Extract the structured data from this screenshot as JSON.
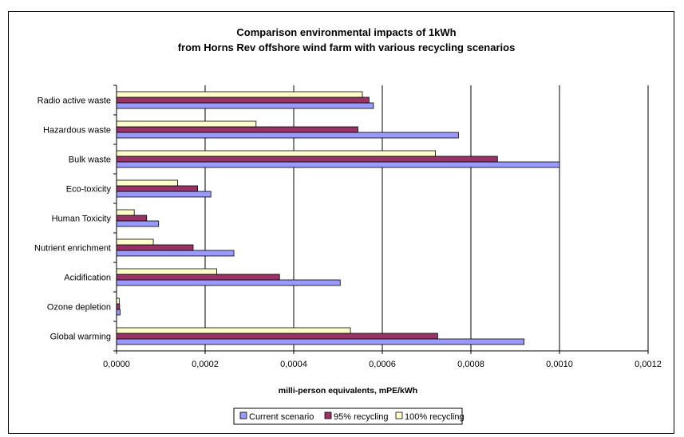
{
  "chart_data": {
    "type": "bar",
    "orientation": "horizontal",
    "title": "Comparison environmental impacts of 1kWh",
    "subtitle": "from Horns Rev offshore wind farm with various recycling scenarios",
    "xlabel": "milli-person equivalents, mPE/kWh",
    "ylabel": "",
    "xlim": [
      0,
      0.0012
    ],
    "xticks": [
      "0,0000",
      "0,0002",
      "0,0004",
      "0,0006",
      "0,0008",
      "0,0010",
      "0,0012"
    ],
    "xtick_values": [
      0,
      0.0002,
      0.0004,
      0.0006,
      0.0008,
      0.001,
      0.0012
    ],
    "grid": "vertical major",
    "legend_position": "bottom",
    "categories": [
      "Global warming",
      "Ozone depletion",
      "Acidification",
      "Nutrient enrichment",
      "Human Toxicity",
      "Eco-toxicity",
      "Bulk waste",
      "Hazardous waste",
      "Radio active waste"
    ],
    "series": [
      {
        "name": "Current scenario",
        "color": "#9999ff",
        "values": [
          0.00092,
          8e-06,
          0.000505,
          0.000265,
          9.5e-05,
          0.000213,
          0.001,
          0.000772,
          0.00058
        ]
      },
      {
        "name": "95% recycling",
        "color": "#993366",
        "values": [
          0.000725,
          7e-06,
          0.000368,
          0.000173,
          6.8e-05,
          0.000183,
          0.00086,
          0.000545,
          0.00057
        ]
      },
      {
        "name": "100% recycling",
        "color": "#ffffcc",
        "values": [
          0.000528,
          6e-06,
          0.000226,
          8.3e-05,
          4e-05,
          0.000138,
          0.00072,
          0.000315,
          0.000555
        ]
      }
    ]
  }
}
